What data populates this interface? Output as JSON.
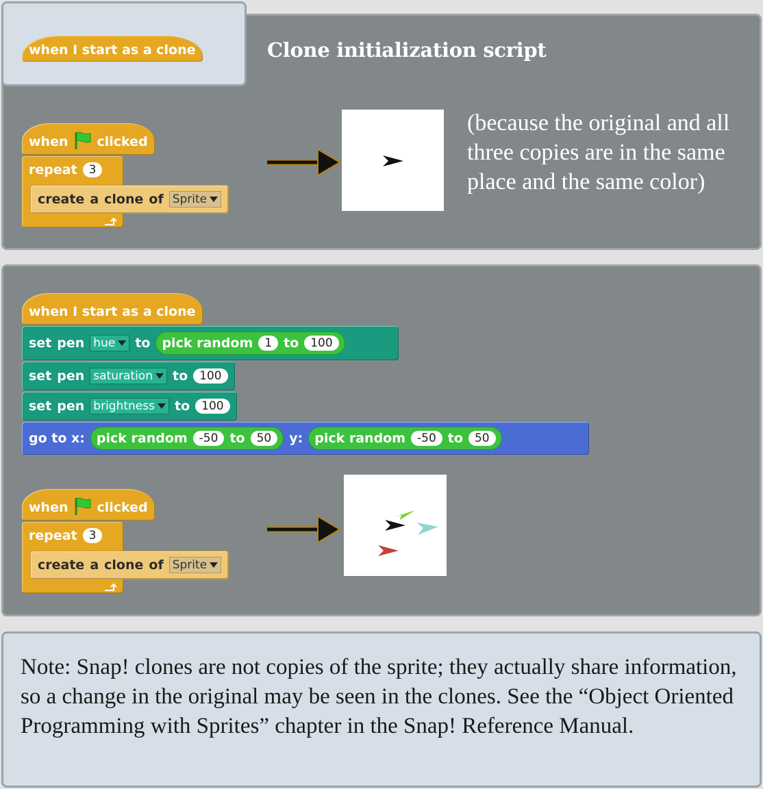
{
  "header_block": {
    "label": "when I start as a clone"
  },
  "title": "Clone initialization script",
  "caption": "(because the original and all three copies are in the same place and the same color)",
  "script1": {
    "hat_when": "when",
    "hat_clicked": "clicked",
    "repeat_label": "repeat",
    "repeat_count": "3",
    "create_label_1": "create",
    "create_label_2": "a",
    "create_label_3": "clone",
    "create_label_4": "of",
    "create_target": "Sprite"
  },
  "clone_script": {
    "hat": "when I start as a clone",
    "set_label": "set",
    "pen_label": "pen",
    "to_label": "to",
    "hue_option": "hue",
    "saturation_option": "saturation",
    "brightness_option": "brightness",
    "pick_random": "pick random",
    "hue_from": "1",
    "hue_to": "100",
    "saturation_value": "100",
    "brightness_value": "100",
    "goto_label": "go to x:",
    "y_label": "y:",
    "x_from": "-50",
    "x_to": "50",
    "y_from": "-50",
    "y_to": "50"
  },
  "script2": {
    "hat_when": "when",
    "hat_clicked": "clicked",
    "repeat_label": "repeat",
    "repeat_count": "3",
    "create_label_1": "create",
    "create_label_2": "a",
    "create_label_3": "clone",
    "create_label_4": "of",
    "create_target": "Sprite"
  },
  "note": "Note: Snap! clones are not copies of the sprite; they actually share information, so a change in the original may be seen in the clones. See the “Object Oriented Programming with Sprites” chapter in the Snap! Reference Manual.",
  "colors": {
    "control": "#e6a822",
    "pen": "#1a9a7e",
    "motion": "#4a6cd4",
    "operator": "#3dc23d",
    "panel_gray": "#828889",
    "panel_light": "#d6dfe7",
    "clone_green": "#7ccd32",
    "clone_cyan": "#8fd6cf",
    "clone_red": "#c2443c",
    "clone_black": "#111111"
  },
  "icons": [
    "green-flag-icon",
    "loop-arrow-icon",
    "right-arrow-icon",
    "sprite-arrow-icon",
    "dropdown-triangle-icon"
  ]
}
